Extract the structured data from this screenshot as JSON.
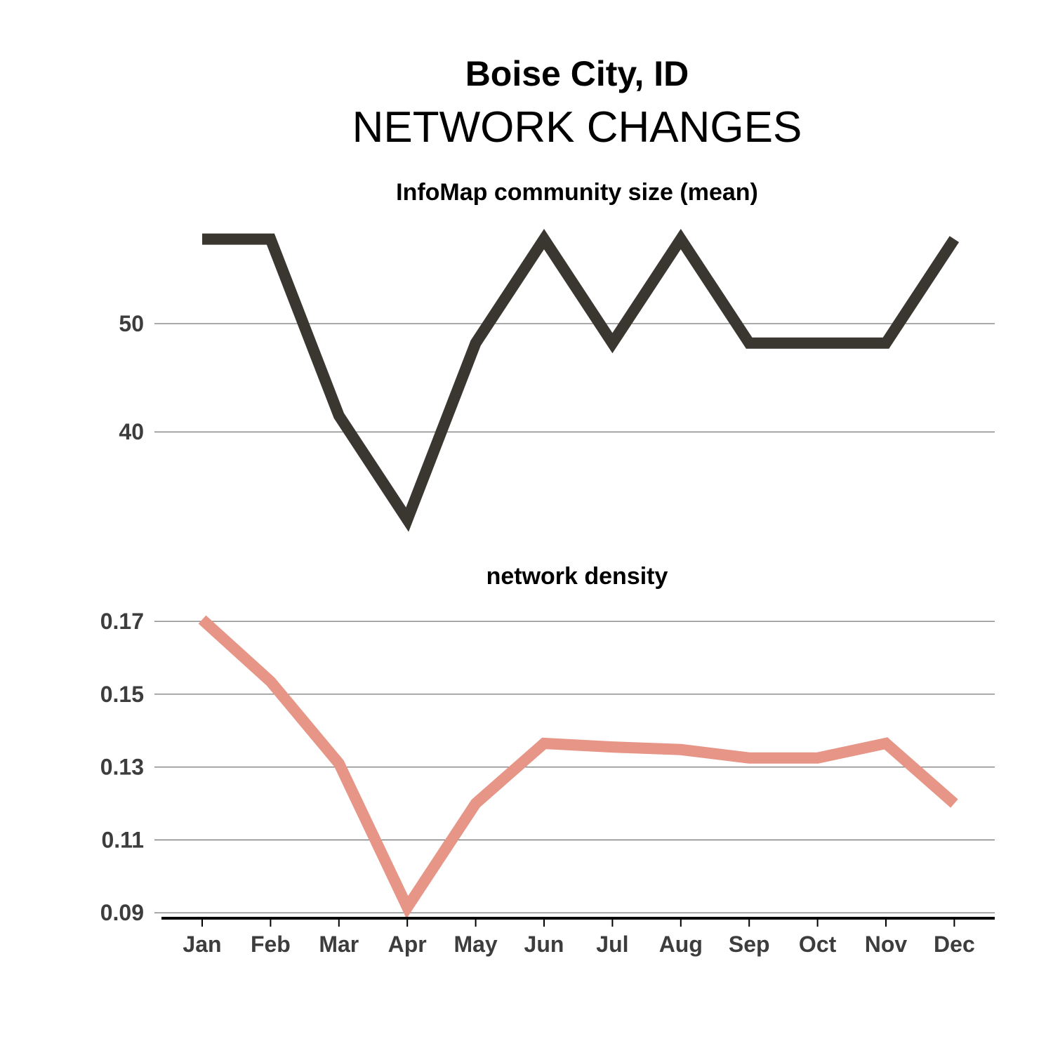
{
  "figure": {
    "title": "Boise City, ID",
    "subtitle": "NETWORK CHANGES"
  },
  "chart_data": [
    {
      "type": "line",
      "title": "InfoMap community size (mean)",
      "xlabel": "",
      "ylabel": "",
      "categories": [
        "Jan",
        "Feb",
        "Mar",
        "Apr",
        "May",
        "Jun",
        "Jul",
        "Aug",
        "Sep",
        "Oct",
        "Nov",
        "Dec"
      ],
      "series": [
        {
          "values": [
            57.8,
            57.8,
            41.5,
            31.9,
            48.2,
            57.8,
            48.2,
            57.8,
            48.2,
            48.2,
            48.2,
            57.8
          ],
          "color": "#3a3630"
        }
      ],
      "yticks": [
        40,
        50
      ],
      "ytick_labels": [
        "40",
        "50"
      ],
      "ylim": [
        31.2,
        59.2
      ],
      "grid": true,
      "x_axis_shown": false
    },
    {
      "type": "line",
      "title": "network density",
      "xlabel": "",
      "ylabel": "",
      "categories": [
        "Jan",
        "Feb",
        "Mar",
        "Apr",
        "May",
        "Jun",
        "Jul",
        "Aug",
        "Sep",
        "Oct",
        "Nov",
        "Dec"
      ],
      "series": [
        {
          "values": [
            0.1705,
            0.1535,
            0.131,
            0.0915,
            0.12,
            0.1365,
            0.1355,
            0.1348,
            0.1325,
            0.1325,
            0.1365,
            0.12
          ],
          "color": "#e69587"
        }
      ],
      "yticks": [
        0.09,
        0.11,
        0.13,
        0.15,
        0.17
      ],
      "ytick_labels": [
        "0.09",
        "0.11",
        "0.13",
        "0.15",
        "0.17"
      ],
      "ylim": [
        0.0885,
        0.1735
      ],
      "grid": true,
      "x_axis_shown": true
    }
  ]
}
